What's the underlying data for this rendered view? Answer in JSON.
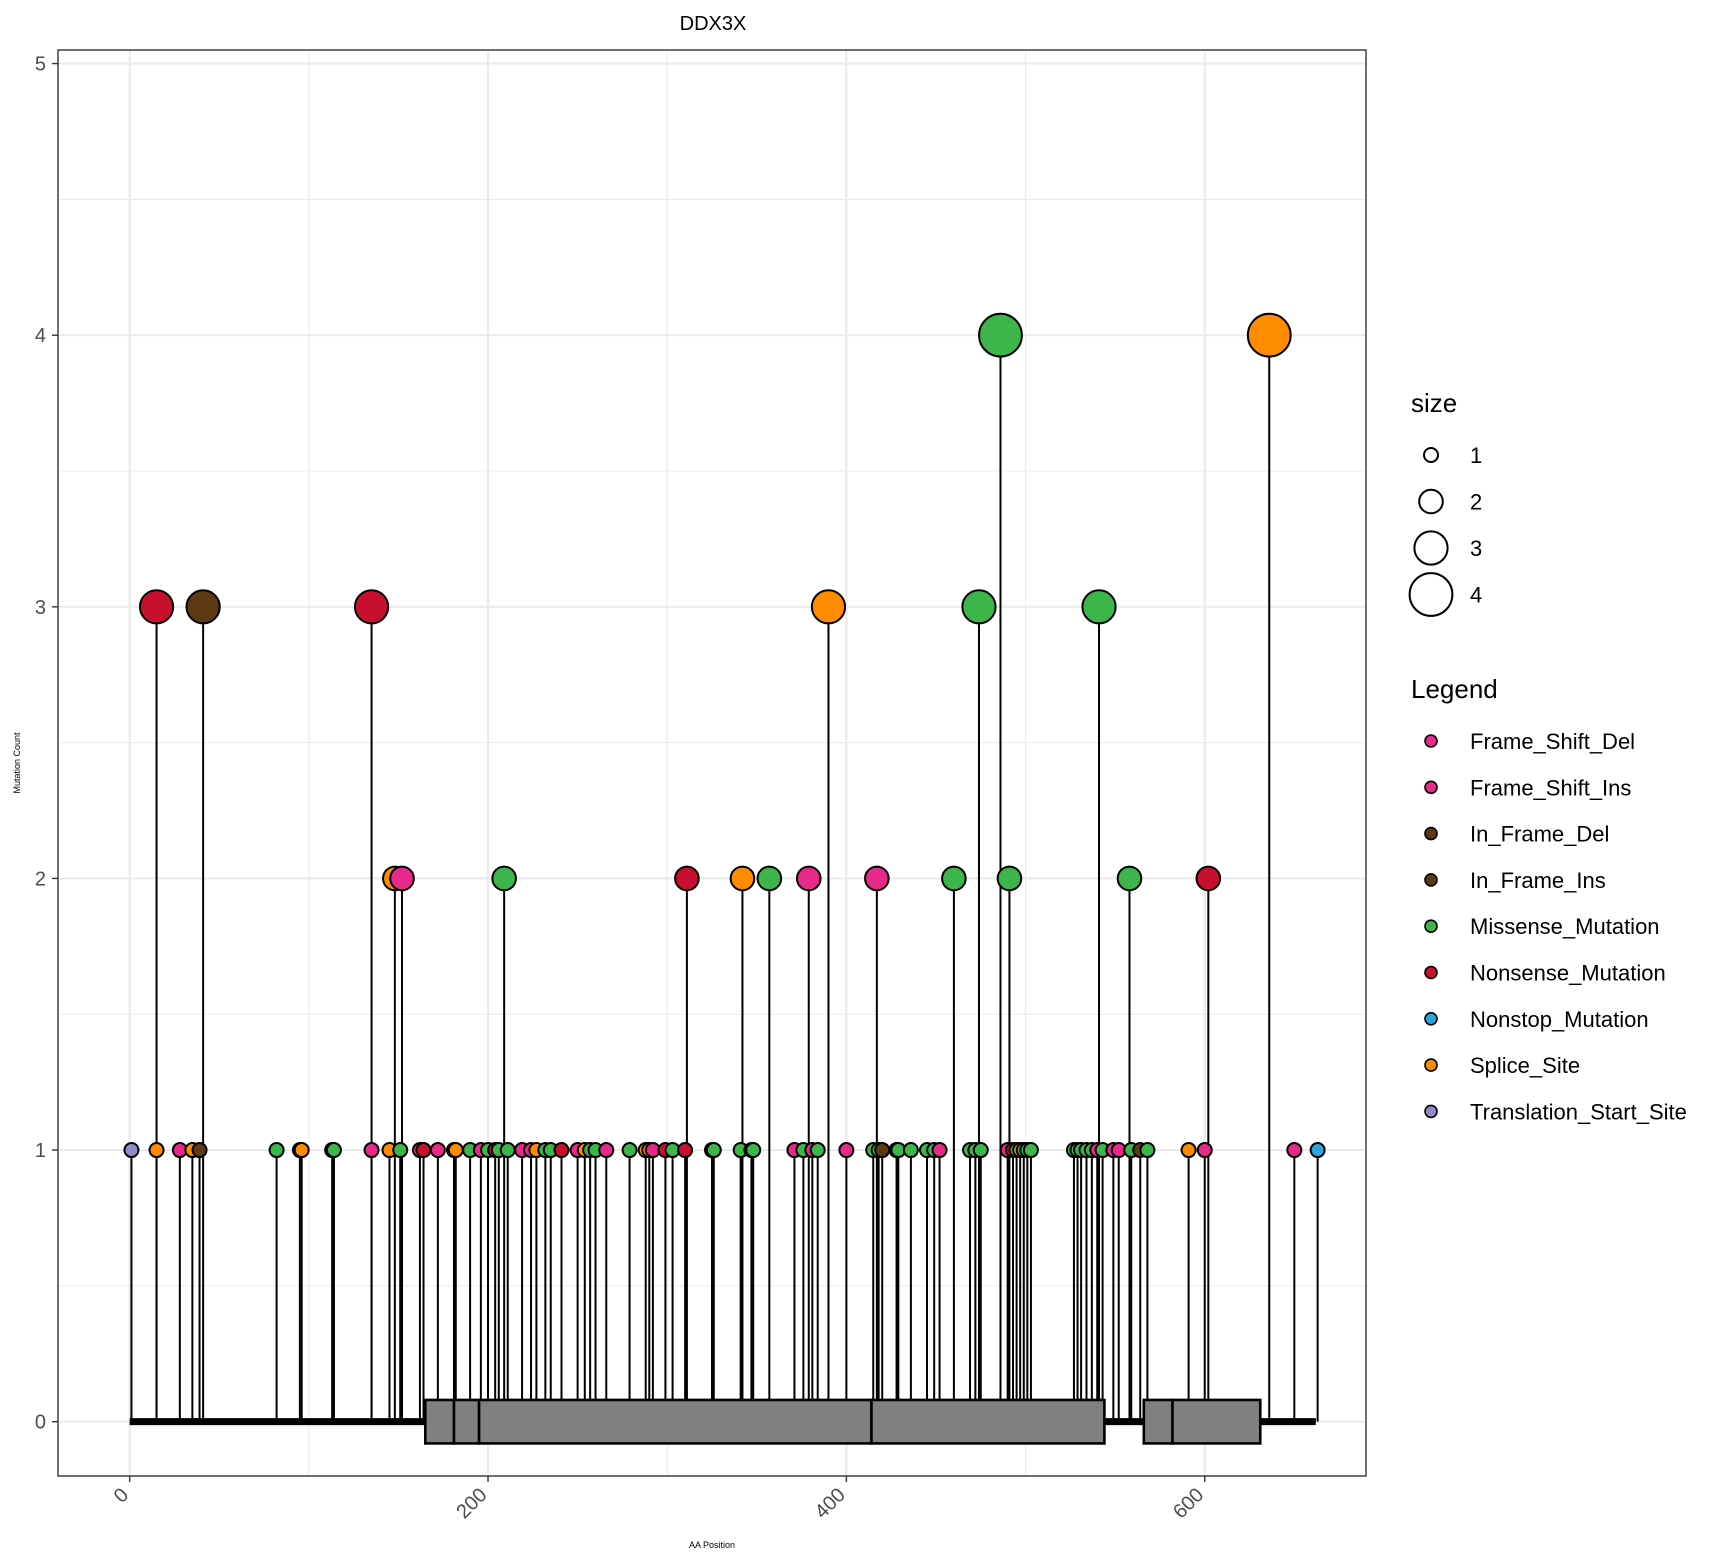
{
  "chart_data": {
    "type": "lollipop",
    "title": "DDX3X",
    "xlabel": "AA Position",
    "ylabel": "Mutation Count",
    "xlim": [
      -40,
      690
    ],
    "ylim": [
      -0.2,
      5.05
    ],
    "x_ticks": [
      0,
      200,
      400,
      600
    ],
    "y_ticks": [
      0,
      1,
      2,
      3,
      4,
      5
    ],
    "protein_length": 662,
    "domains": [
      {
        "start": 165,
        "end": 181
      },
      {
        "start": 181,
        "end": 195
      },
      {
        "start": 195,
        "end": 414
      },
      {
        "start": 414,
        "end": 544
      },
      {
        "start": 566,
        "end": 582
      },
      {
        "start": 582,
        "end": 631
      }
    ],
    "colors": {
      "Frame_Shift_Del": "#e7298a",
      "Frame_Shift_Ins": "#e7298a",
      "In_Frame_Del": "#5c3a13",
      "In_Frame_Ins": "#5c3a13",
      "Missense_Mutation": "#3cb54a",
      "Nonsense_Mutation": "#c8102e",
      "Nonstop_Mutation": "#2aa6dc",
      "Splice_Site": "#ff8c00",
      "Translation_Start_Site": "#8f8cc8"
    },
    "mutations": [
      {
        "x": 1,
        "count": 1,
        "type": "Translation_Start_Site"
      },
      {
        "x": 15,
        "count": 1,
        "type": "Splice_Site"
      },
      {
        "x": 15,
        "count": 3,
        "type": "Nonsense_Mutation"
      },
      {
        "x": 28,
        "count": 1,
        "type": "Frame_Shift_Del"
      },
      {
        "x": 35,
        "count": 1,
        "type": "Splice_Site"
      },
      {
        "x": 39,
        "count": 1,
        "type": "In_Frame_Del"
      },
      {
        "x": 41,
        "count": 3,
        "type": "In_Frame_Del"
      },
      {
        "x": 82,
        "count": 1,
        "type": "Missense_Mutation"
      },
      {
        "x": 95,
        "count": 1,
        "type": "Splice_Site"
      },
      {
        "x": 96,
        "count": 1,
        "type": "Splice_Site"
      },
      {
        "x": 113,
        "count": 1,
        "type": "Missense_Mutation"
      },
      {
        "x": 114,
        "count": 1,
        "type": "Missense_Mutation"
      },
      {
        "x": 135,
        "count": 1,
        "type": "Frame_Shift_Del"
      },
      {
        "x": 135,
        "count": 3,
        "type": "Nonsense_Mutation"
      },
      {
        "x": 145,
        "count": 1,
        "type": "Splice_Site"
      },
      {
        "x": 148,
        "count": 2,
        "type": "Splice_Site"
      },
      {
        "x": 151,
        "count": 1,
        "type": "Missense_Mutation"
      },
      {
        "x": 152,
        "count": 2,
        "type": "Frame_Shift_Ins"
      },
      {
        "x": 162,
        "count": 1,
        "type": "Frame_Shift_Del"
      },
      {
        "x": 164,
        "count": 1,
        "type": "Nonsense_Mutation"
      },
      {
        "x": 172,
        "count": 1,
        "type": "Frame_Shift_Del"
      },
      {
        "x": 181,
        "count": 1,
        "type": "Missense_Mutation"
      },
      {
        "x": 182,
        "count": 1,
        "type": "Splice_Site"
      },
      {
        "x": 190,
        "count": 1,
        "type": "Missense_Mutation"
      },
      {
        "x": 196,
        "count": 1,
        "type": "Frame_Shift_Del"
      },
      {
        "x": 200,
        "count": 1,
        "type": "Missense_Mutation"
      },
      {
        "x": 204,
        "count": 1,
        "type": "Nonsense_Mutation"
      },
      {
        "x": 206,
        "count": 1,
        "type": "Missense_Mutation"
      },
      {
        "x": 209,
        "count": 2,
        "type": "Missense_Mutation"
      },
      {
        "x": 211,
        "count": 1,
        "type": "Missense_Mutation"
      },
      {
        "x": 219,
        "count": 1,
        "type": "Frame_Shift_Del"
      },
      {
        "x": 224,
        "count": 1,
        "type": "Frame_Shift_Ins"
      },
      {
        "x": 227,
        "count": 1,
        "type": "Splice_Site"
      },
      {
        "x": 232,
        "count": 1,
        "type": "Missense_Mutation"
      },
      {
        "x": 235,
        "count": 1,
        "type": "Missense_Mutation"
      },
      {
        "x": 241,
        "count": 1,
        "type": "Nonsense_Mutation"
      },
      {
        "x": 250,
        "count": 1,
        "type": "Frame_Shift_Del"
      },
      {
        "x": 254,
        "count": 1,
        "type": "Splice_Site"
      },
      {
        "x": 257,
        "count": 1,
        "type": "Missense_Mutation"
      },
      {
        "x": 260,
        "count": 1,
        "type": "Missense_Mutation"
      },
      {
        "x": 266,
        "count": 1,
        "type": "Frame_Shift_Del"
      },
      {
        "x": 279,
        "count": 1,
        "type": "Missense_Mutation"
      },
      {
        "x": 288,
        "count": 1,
        "type": "Splice_Site"
      },
      {
        "x": 290,
        "count": 1,
        "type": "Splice_Site"
      },
      {
        "x": 292,
        "count": 1,
        "type": "Frame_Shift_Del"
      },
      {
        "x": 299,
        "count": 1,
        "type": "Nonsense_Mutation"
      },
      {
        "x": 303,
        "count": 1,
        "type": "Missense_Mutation"
      },
      {
        "x": 310,
        "count": 1,
        "type": "Nonsense_Mutation"
      },
      {
        "x": 311,
        "count": 2,
        "type": "Nonsense_Mutation"
      },
      {
        "x": 325,
        "count": 1,
        "type": "Missense_Mutation"
      },
      {
        "x": 326,
        "count": 1,
        "type": "Missense_Mutation"
      },
      {
        "x": 341,
        "count": 1,
        "type": "Missense_Mutation"
      },
      {
        "x": 342,
        "count": 2,
        "type": "Splice_Site"
      },
      {
        "x": 347,
        "count": 1,
        "type": "Missense_Mutation"
      },
      {
        "x": 348,
        "count": 1,
        "type": "Missense_Mutation"
      },
      {
        "x": 357,
        "count": 2,
        "type": "Missense_Mutation"
      },
      {
        "x": 371,
        "count": 1,
        "type": "Frame_Shift_Del"
      },
      {
        "x": 376,
        "count": 1,
        "type": "Missense_Mutation"
      },
      {
        "x": 379,
        "count": 2,
        "type": "Frame_Shift_Del"
      },
      {
        "x": 381,
        "count": 1,
        "type": "Frame_Shift_Ins"
      },
      {
        "x": 384,
        "count": 1,
        "type": "Missense_Mutation"
      },
      {
        "x": 390,
        "count": 3,
        "type": "Splice_Site"
      },
      {
        "x": 400,
        "count": 1,
        "type": "Frame_Shift_Del"
      },
      {
        "x": 415,
        "count": 1,
        "type": "Missense_Mutation"
      },
      {
        "x": 417,
        "count": 2,
        "type": "Frame_Shift_Ins"
      },
      {
        "x": 418,
        "count": 1,
        "type": "Missense_Mutation"
      },
      {
        "x": 420,
        "count": 1,
        "type": "In_Frame_Del"
      },
      {
        "x": 428,
        "count": 1,
        "type": "Missense_Mutation"
      },
      {
        "x": 429,
        "count": 1,
        "type": "Missense_Mutation"
      },
      {
        "x": 436,
        "count": 1,
        "type": "Missense_Mutation"
      },
      {
        "x": 445,
        "count": 1,
        "type": "Missense_Mutation"
      },
      {
        "x": 449,
        "count": 1,
        "type": "Missense_Mutation"
      },
      {
        "x": 452,
        "count": 1,
        "type": "Frame_Shift_Del"
      },
      {
        "x": 460,
        "count": 2,
        "type": "Missense_Mutation"
      },
      {
        "x": 469,
        "count": 1,
        "type": "Missense_Mutation"
      },
      {
        "x": 472,
        "count": 1,
        "type": "Missense_Mutation"
      },
      {
        "x": 474,
        "count": 3,
        "type": "Missense_Mutation"
      },
      {
        "x": 475,
        "count": 1,
        "type": "Missense_Mutation"
      },
      {
        "x": 486,
        "count": 4,
        "type": "Missense_Mutation"
      },
      {
        "x": 490,
        "count": 1,
        "type": "Frame_Shift_Del"
      },
      {
        "x": 491,
        "count": 2,
        "type": "Missense_Mutation"
      },
      {
        "x": 493,
        "count": 1,
        "type": "Nonsense_Mutation"
      },
      {
        "x": 495,
        "count": 1,
        "type": "Missense_Mutation"
      },
      {
        "x": 497,
        "count": 1,
        "type": "Splice_Site"
      },
      {
        "x": 499,
        "count": 1,
        "type": "Missense_Mutation"
      },
      {
        "x": 501,
        "count": 1,
        "type": "Missense_Mutation"
      },
      {
        "x": 503,
        "count": 1,
        "type": "Missense_Mutation"
      },
      {
        "x": 527,
        "count": 1,
        "type": "Missense_Mutation"
      },
      {
        "x": 529,
        "count": 1,
        "type": "Missense_Mutation"
      },
      {
        "x": 531,
        "count": 1,
        "type": "Missense_Mutation"
      },
      {
        "x": 534,
        "count": 1,
        "type": "Missense_Mutation"
      },
      {
        "x": 537,
        "count": 1,
        "type": "Missense_Mutation"
      },
      {
        "x": 540,
        "count": 1,
        "type": "Frame_Shift_Del"
      },
      {
        "x": 541,
        "count": 3,
        "type": "Missense_Mutation"
      },
      {
        "x": 543,
        "count": 1,
        "type": "Missense_Mutation"
      },
      {
        "x": 549,
        "count": 1,
        "type": "Frame_Shift_Del"
      },
      {
        "x": 552,
        "count": 1,
        "type": "Frame_Shift_Ins"
      },
      {
        "x": 558,
        "count": 2,
        "type": "Missense_Mutation"
      },
      {
        "x": 559,
        "count": 1,
        "type": "Missense_Mutation"
      },
      {
        "x": 564,
        "count": 1,
        "type": "In_Frame_Del"
      },
      {
        "x": 568,
        "count": 1,
        "type": "Missense_Mutation"
      },
      {
        "x": 591,
        "count": 1,
        "type": "Splice_Site"
      },
      {
        "x": 600,
        "count": 1,
        "type": "Frame_Shift_Del"
      },
      {
        "x": 602,
        "count": 2,
        "type": "Nonsense_Mutation"
      },
      {
        "x": 636,
        "count": 4,
        "type": "Splice_Site"
      },
      {
        "x": 650,
        "count": 1,
        "type": "Frame_Shift_Del"
      },
      {
        "x": 663,
        "count": 1,
        "type": "Nonstop_Mutation"
      }
    ],
    "size_legend": {
      "title": "size",
      "items": [
        "1",
        "2",
        "3",
        "4"
      ]
    },
    "color_legend": {
      "title": "Legend",
      "items": [
        "Frame_Shift_Del",
        "Frame_Shift_Ins",
        "In_Frame_Del",
        "In_Frame_Ins",
        "Missense_Mutation",
        "Nonsense_Mutation",
        "Nonstop_Mutation",
        "Splice_Site",
        "Translation_Start_Site"
      ]
    },
    "legend_position": "right",
    "grid": true
  }
}
